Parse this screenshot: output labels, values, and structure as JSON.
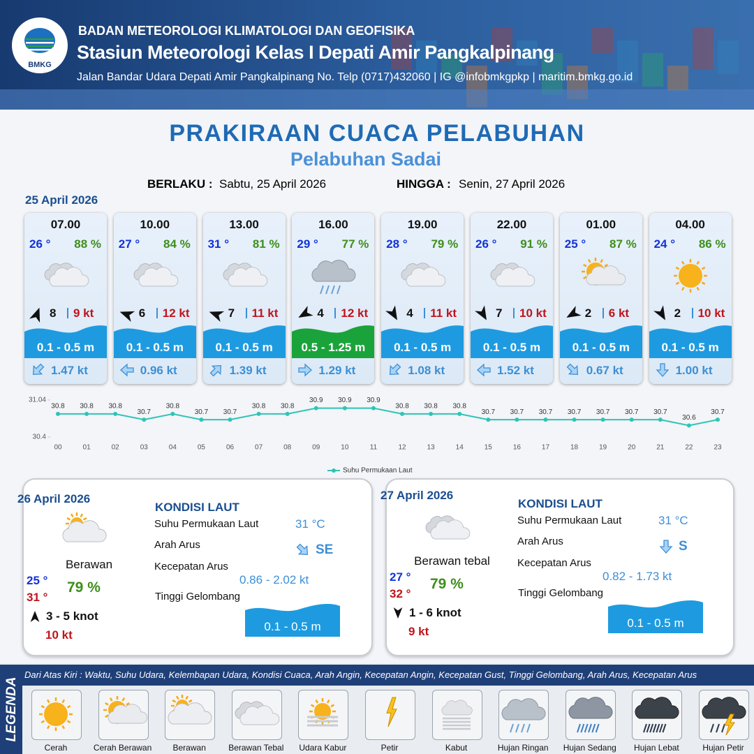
{
  "header": {
    "logo": "BMKG",
    "agency": "BADAN METEOROLOGI KLIMATOLOGI DAN GEOFISIKA",
    "station": "Stasiun Meteorologi Kelas I Depati Amir Pangkalpinang",
    "contact": "Jalan Bandar Udara Depati Amir Pangkalpinang No. Telp (0717)432060 | IG @infobmkgpkp | maritim.bmkg.go.id"
  },
  "title": "PRAKIRAAN CUACA PELABUHAN",
  "subtitle": "Pelabuhan Sadai",
  "validity": {
    "from_label": "BERLAKU :",
    "from": "Sabtu, 25 April 2026",
    "to_label": "HINGGA :",
    "to": "Senin, 27 April 2026"
  },
  "day1": {
    "date": "25 April 2026",
    "cards": [
      {
        "time": "07.00",
        "temp": "26 °",
        "humidity": "88 %",
        "wind_speed": "8",
        "gust": "9 kt",
        "wave": "0.1 - 0.5 m",
        "current": "1.47 kt"
      },
      {
        "time": "10.00",
        "temp": "27 °",
        "humidity": "84 %",
        "wind_speed": "6",
        "gust": "12 kt",
        "wave": "0.1 - 0.5 m",
        "current": "0.96 kt"
      },
      {
        "time": "13.00",
        "temp": "31 °",
        "humidity": "81 %",
        "wind_speed": "7",
        "gust": "11 kt",
        "wave": "0.1 - 0.5 m",
        "current": "1.39 kt"
      },
      {
        "time": "16.00",
        "temp": "29 °",
        "humidity": "77 %",
        "wind_speed": "4",
        "gust": "12 kt",
        "wave": "0.5 - 1.25 m",
        "current": "1.29 kt"
      },
      {
        "time": "19.00",
        "temp": "28 °",
        "humidity": "79 %",
        "wind_speed": "4",
        "gust": "11 kt",
        "wave": "0.1 - 0.5 m",
        "current": "1.08 kt"
      },
      {
        "time": "22.00",
        "temp": "26 °",
        "humidity": "91 %",
        "wind_speed": "7",
        "gust": "10 kt",
        "wave": "0.1 - 0.5 m",
        "current": "1.52 kt"
      },
      {
        "time": "01.00",
        "temp": "25 °",
        "humidity": "87 %",
        "wind_speed": "2",
        "gust": "6 kt",
        "wave": "0.1 - 0.5 m",
        "current": "0.67 kt"
      },
      {
        "time": "04.00",
        "temp": "24 °",
        "humidity": "86 %",
        "wind_speed": "2",
        "gust": "10 kt",
        "wave": "0.1 - 0.5 m",
        "current": "1.00 kt"
      }
    ]
  },
  "chart_data": {
    "type": "line",
    "categories": [
      "00",
      "01",
      "02",
      "03",
      "04",
      "05",
      "06",
      "07",
      "08",
      "09",
      "10",
      "11",
      "12",
      "13",
      "14",
      "15",
      "16",
      "17",
      "18",
      "19",
      "20",
      "21",
      "22",
      "23"
    ],
    "series": [
      {
        "name": "Suhu Permukaan Laut",
        "color": "#2ec4b6",
        "values": [
          30.8,
          30.8,
          30.8,
          30.7,
          30.8,
          30.7,
          30.7,
          30.8,
          30.8,
          30.9,
          30.9,
          30.9,
          30.8,
          30.8,
          30.8,
          30.7,
          30.7,
          30.7,
          30.7,
          30.7,
          30.7,
          30.7,
          30.6,
          30.7
        ]
      }
    ],
    "ylim": [
      30.4,
      31.04
    ],
    "yticks": [
      30.4,
      31.04
    ]
  },
  "days": [
    {
      "date": "26 April 2026",
      "condition": "Berawan",
      "temp_min": "25 °",
      "temp_max": "31 °",
      "humidity": "79 %",
      "wind": "3  - 5 knot",
      "gust": "10 kt",
      "sea": {
        "heading": "KONDISI LAUT",
        "sst_label": "Suhu Permukaan Laut",
        "sst": "31 °C",
        "current_dir_label": "Arah Arus",
        "current_dir": "SE",
        "current_speed_label": "Kecepatan Arus",
        "current_speed": "0.86  - 2.02 kt",
        "wave_label": "Tinggi Gelombang",
        "wave": "0.1 - 0.5 m"
      }
    },
    {
      "date": "27 April 2026",
      "condition": "Berawan tebal",
      "temp_min": "27 °",
      "temp_max": "32 °",
      "humidity": "79 %",
      "wind": "1  - 6 knot",
      "gust": "9 kt",
      "sea": {
        "heading": "KONDISI LAUT",
        "sst_label": "Suhu Permukaan Laut",
        "sst": "31 °C",
        "current_dir_label": "Arah Arus",
        "current_dir": "S",
        "current_speed_label": "Kecepatan Arus",
        "current_speed": "0.82  - 1.73 kt",
        "wave_label": "Tinggi Gelombang",
        "wave": "0.1 - 0.5 m"
      }
    }
  ],
  "legend": {
    "title": "LEGENDA",
    "description": "Dari Atas Kiri : Waktu, Suhu Udara, Kelembapan Udara, Kondisi Cuaca, Arah Angin, Kecepatan Angin, Kecepatan Gust, Tinggi Gelombang, Arah Arus, Kecepatan Arus",
    "items": [
      "Cerah",
      "Cerah Berawan",
      "Berawan",
      "Berawan Tebal",
      "Udara Kabur",
      "Petir",
      "Kabut",
      "Hujan Ringan",
      "Hujan Sedang",
      "Hujan Lebat",
      "Hujan Petir"
    ]
  }
}
